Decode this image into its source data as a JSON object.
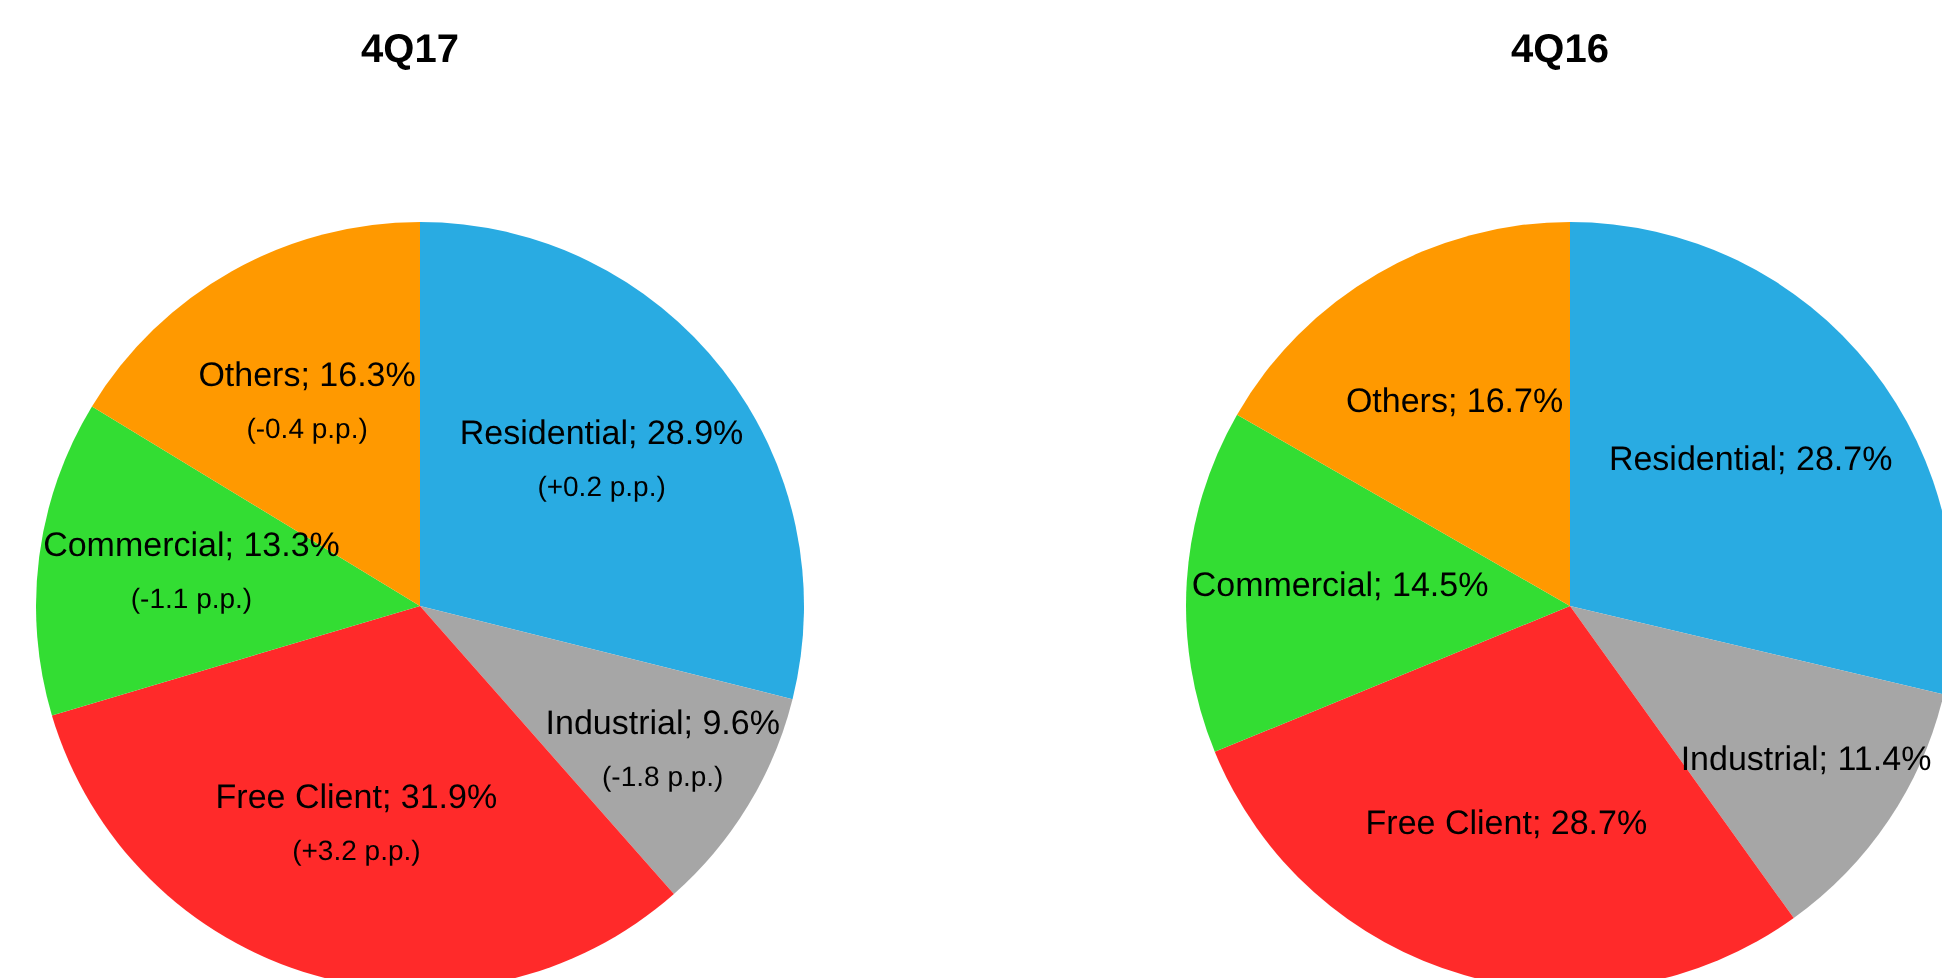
{
  "chart_data": [
    {
      "type": "pie",
      "title": "4Q17",
      "categories": [
        "Residential",
        "Industrial",
        "Free Client",
        "Commercial",
        "Others"
      ],
      "values": [
        28.9,
        9.6,
        31.9,
        13.3,
        16.3
      ],
      "value_labels": [
        "28.9%",
        "9.6%",
        "31.9%",
        "13.3%",
        "16.3%"
      ],
      "colors": [
        "#29abe2",
        "#a6a6a6",
        "#ff2a2a",
        "#33dd33",
        "#ff9900"
      ],
      "annotations": [
        "(+0.2 p.p.)",
        "(-1.8 p.p.)",
        "(+3.2 p.p.)",
        "(-1.1 p.p.)",
        "(-0.4 p.p.)"
      ]
    },
    {
      "type": "pie",
      "title": "4Q16",
      "categories": [
        "Residential",
        "Industrial",
        "Free Client",
        "Commercial",
        "Others"
      ],
      "values": [
        28.7,
        11.4,
        28.7,
        14.5,
        16.7
      ],
      "value_labels": [
        "28.7%",
        "11.4%",
        "28.7%",
        "14.5%",
        "16.7%"
      ],
      "colors": [
        "#29abe2",
        "#a6a6a6",
        "#ff2a2a",
        "#33dd33",
        "#ff9900"
      ]
    }
  ]
}
